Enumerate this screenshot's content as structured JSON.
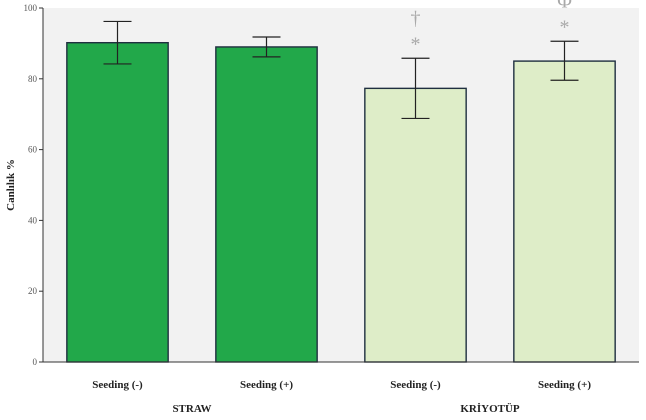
{
  "chart_data": {
    "type": "bar",
    "title": "",
    "xlabel": "",
    "ylabel": "Canlılık %",
    "ylim": [
      0,
      100
    ],
    "yticks": [
      0,
      20,
      40,
      60,
      80,
      100
    ],
    "grid": false,
    "background": "#f2f2f2",
    "bar_outline_color": "#1f2f3f",
    "categories": [
      "Seeding (-)",
      "Seeding (+)",
      "Seeding (-)",
      "Seeding (+)"
    ],
    "groups": [
      {
        "label": "STRAW",
        "category_indices": [
          0,
          1
        ]
      },
      {
        "label": "KRİYOTÜP",
        "category_indices": [
          2,
          3
        ]
      }
    ],
    "values": [
      90.2,
      89.0,
      77.3,
      85.0
    ],
    "error_bars": [
      {
        "low": 84.2,
        "high": 96.2
      },
      {
        "low": 86.2,
        "high": 91.8
      },
      {
        "low": 68.8,
        "high": 85.8
      },
      {
        "low": 79.6,
        "high": 90.6
      }
    ],
    "colors": [
      "#22a84a",
      "#22a84a",
      "#deedc8",
      "#deedc8"
    ],
    "annotations": [
      {
        "category_index": 2,
        "symbols": [
          "†",
          "*"
        ]
      },
      {
        "category_index": 3,
        "symbols": [
          "Φ",
          "*"
        ]
      }
    ],
    "annotation_color": "#a9a9a9"
  }
}
